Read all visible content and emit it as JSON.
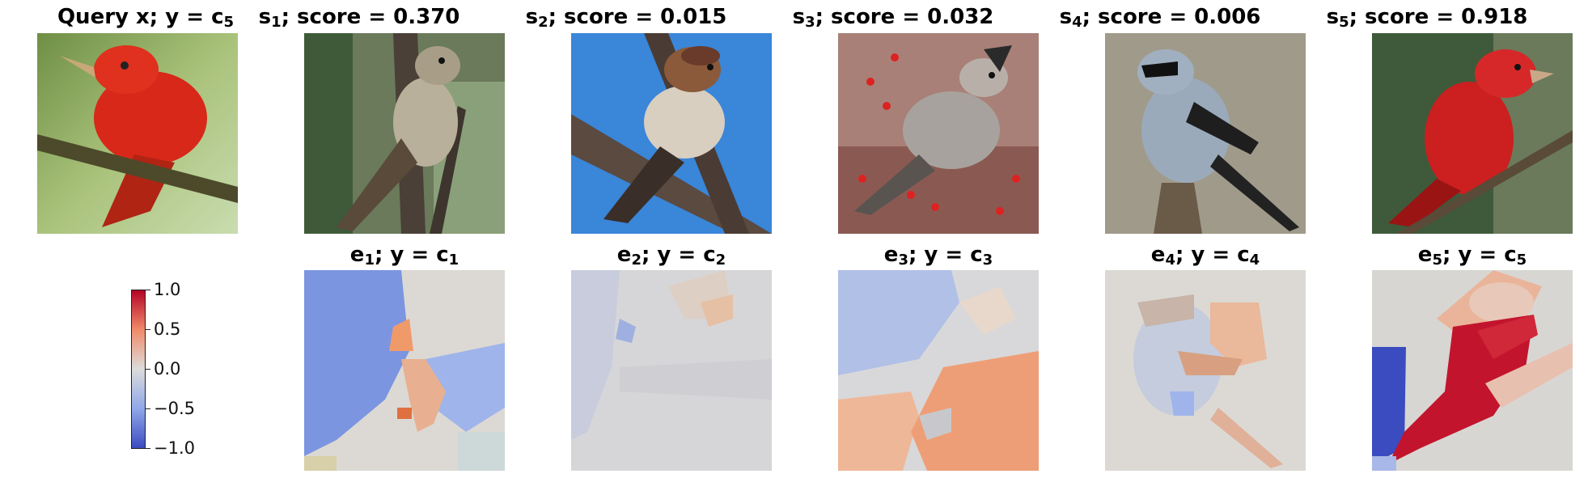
{
  "query": {
    "title_main": "Query x; y = c",
    "title_sub": "5",
    "image_icon": "red-bird-icon"
  },
  "sources": [
    {
      "title_prefix": "s",
      "title_sub": "1",
      "title_suffix": "; score = 0.370",
      "image_icon": "flycatcher-bird-icon"
    },
    {
      "title_prefix": "s",
      "title_sub": "2",
      "title_suffix": "; score = 0.015",
      "image_icon": "sparrow-bird-icon"
    },
    {
      "title_prefix": "s",
      "title_sub": "3",
      "title_suffix": "; score = 0.032",
      "image_icon": "waxwing-bird-icon"
    },
    {
      "title_prefix": "s",
      "title_sub": "4",
      "title_suffix": "; score = 0.006",
      "image_icon": "shrike-bird-icon"
    },
    {
      "title_prefix": "s",
      "title_sub": "5",
      "title_suffix": "; score = 0.918",
      "image_icon": "red-tanager-bird-icon"
    }
  ],
  "explanations": [
    {
      "title_prefix": "e",
      "title_sub": "1",
      "title_mid": "; y = c",
      "title_sub2": "1"
    },
    {
      "title_prefix": "e",
      "title_sub": "2",
      "title_mid": "; y = c",
      "title_sub2": "2"
    },
    {
      "title_prefix": "e",
      "title_sub": "3",
      "title_mid": "; y = c",
      "title_sub2": "3"
    },
    {
      "title_prefix": "e",
      "title_sub": "4",
      "title_mid": "; y = c",
      "title_sub2": "4"
    },
    {
      "title_prefix": "e",
      "title_sub": "5",
      "title_mid": "; y = c",
      "title_sub2": "5"
    }
  ],
  "colorbar": {
    "ticks": [
      "1.0",
      "0.5",
      "0.0",
      "−0.5",
      "−1.0"
    ],
    "colors": {
      "high": "#b40426",
      "mid": "#dddcdc",
      "low": "#3b4cc0"
    }
  }
}
